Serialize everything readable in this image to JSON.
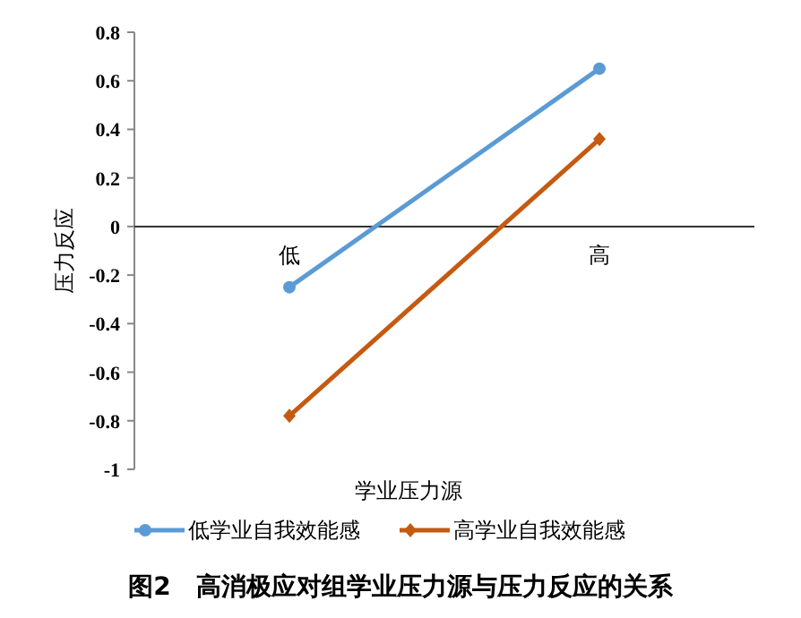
{
  "chart_data": {
    "type": "line",
    "ylabel": "压力反应",
    "xlabel": "学业压力源",
    "categories": [
      "低",
      "高"
    ],
    "ylim": [
      -1,
      0.8
    ],
    "yticks": [
      -1,
      -0.8,
      -0.6,
      -0.4,
      -0.2,
      0,
      0.2,
      0.4,
      0.6,
      0.8
    ],
    "grid": false,
    "legend": "bottom",
    "series": [
      {
        "name": "低学业自我效能感",
        "color": "#5b9bd5",
        "marker": "circle",
        "values": [
          -0.25,
          0.65
        ]
      },
      {
        "name": "高学业自我效能感",
        "color": "#c55a11",
        "marker": "diamond",
        "values": [
          -0.78,
          0.36
        ]
      }
    ],
    "annotations": [
      "图2　高消极应对组学业压力源与压力反应的关系"
    ]
  }
}
